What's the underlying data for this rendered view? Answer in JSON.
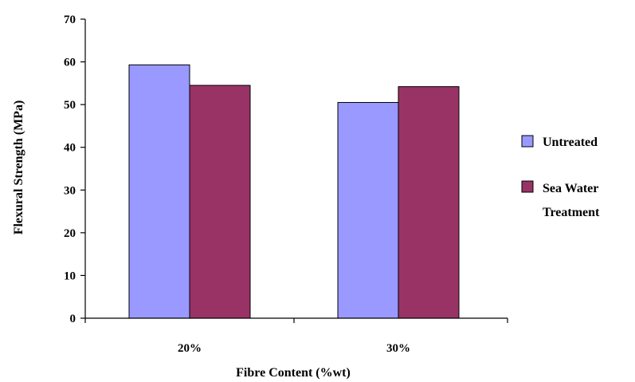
{
  "colors": {
    "untreated": "#9999ff",
    "sea_water": "#993366",
    "axis": "#000000"
  },
  "chart_data": {
    "type": "bar",
    "title": "",
    "xlabel": "Fibre Content (%wt)",
    "ylabel": "Flexural Strength (MPa)",
    "ylim": [
      0,
      70
    ],
    "yticks": [
      0,
      10,
      20,
      30,
      40,
      50,
      60,
      70
    ],
    "categories": [
      "20%",
      "30%"
    ],
    "series": [
      {
        "name": "Untreated",
        "values": [
          59.3,
          50.5
        ]
      },
      {
        "name_lines": [
          "Sea Water",
          "Treatment"
        ],
        "values": [
          54.5,
          54.2
        ]
      }
    ],
    "grid": false,
    "legend": "right"
  }
}
